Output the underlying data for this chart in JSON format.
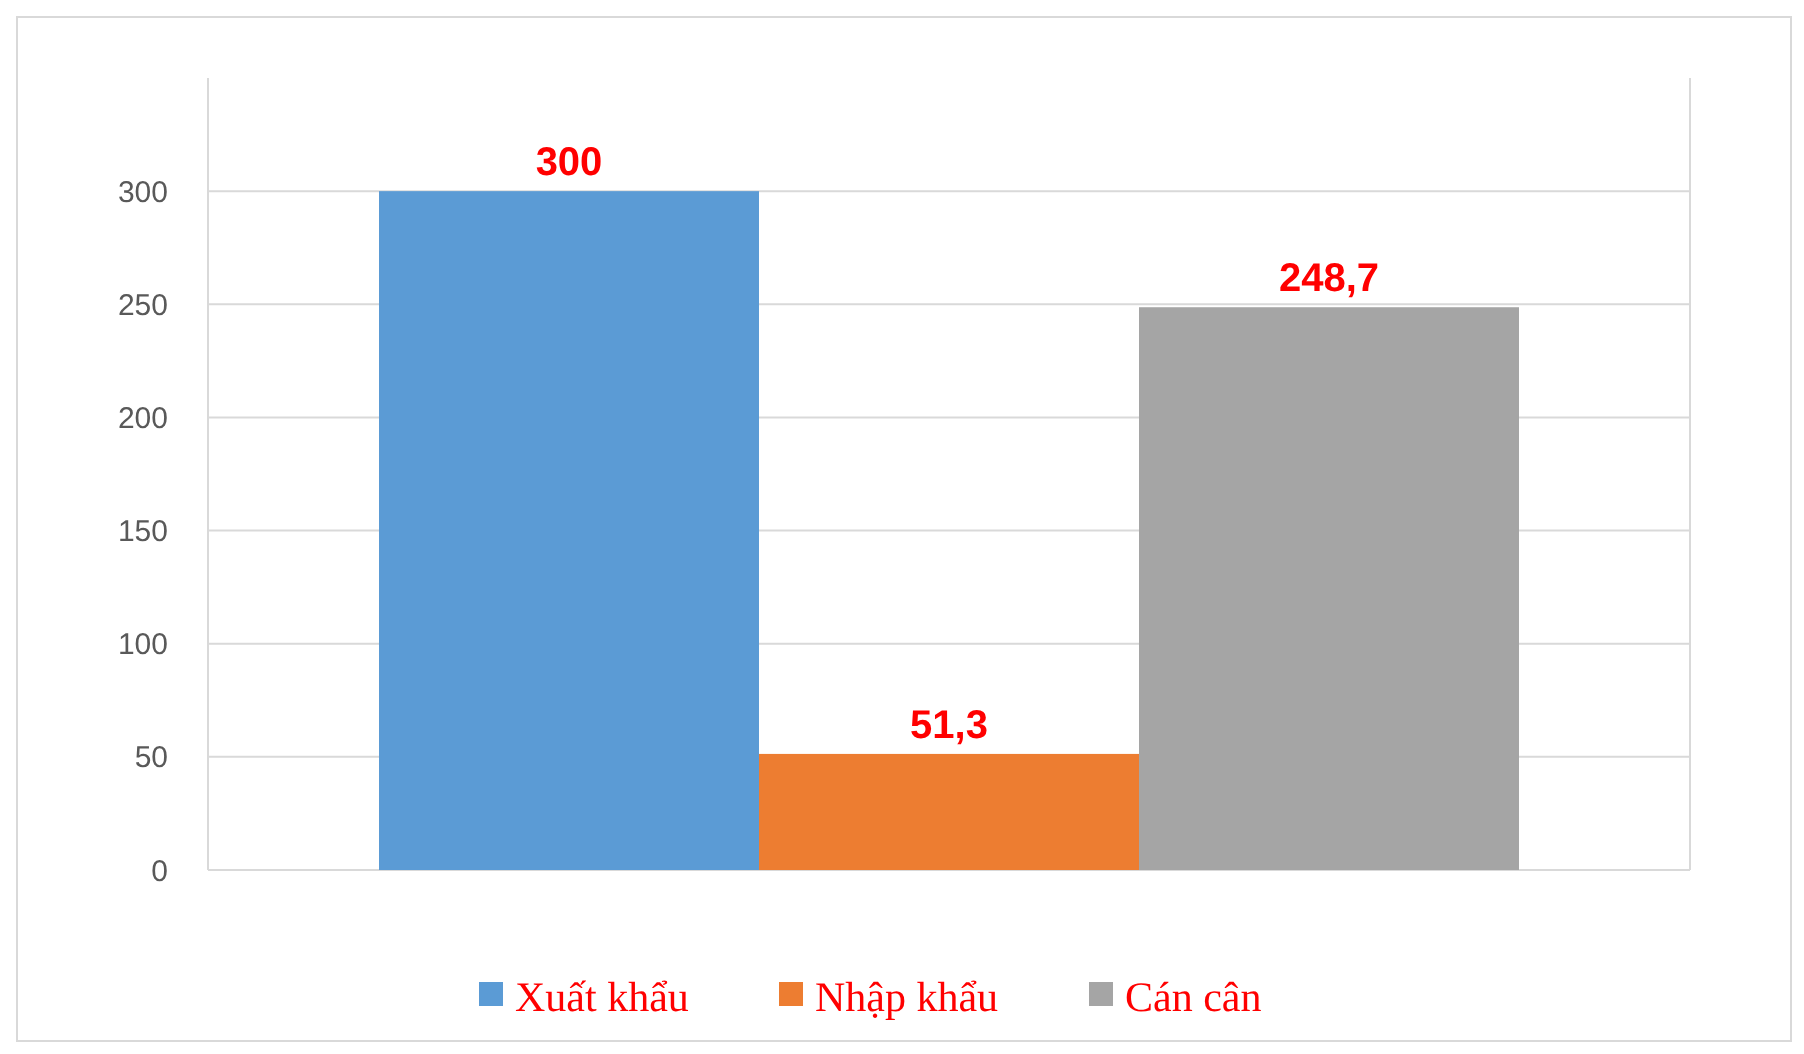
{
  "chart_data": {
    "type": "bar",
    "categories": [
      null
    ],
    "series": [
      {
        "name": "Xuất khẩu",
        "color": "#5b9bd5",
        "values": [
          300
        ],
        "value_labels": [
          "300"
        ]
      },
      {
        "name": "Nhập khẩu",
        "color": "#ed7d31",
        "values": [
          51.3
        ],
        "value_labels": [
          "51,3"
        ]
      },
      {
        "name": "Cán cân",
        "color": "#a5a5a5",
        "values": [
          248.7
        ],
        "value_labels": [
          "248,7"
        ]
      }
    ],
    "ylim": [
      0,
      350
    ],
    "yticks": [
      0,
      50,
      100,
      150,
      200,
      250,
      300
    ],
    "grid": "y",
    "legend": "bottom"
  }
}
